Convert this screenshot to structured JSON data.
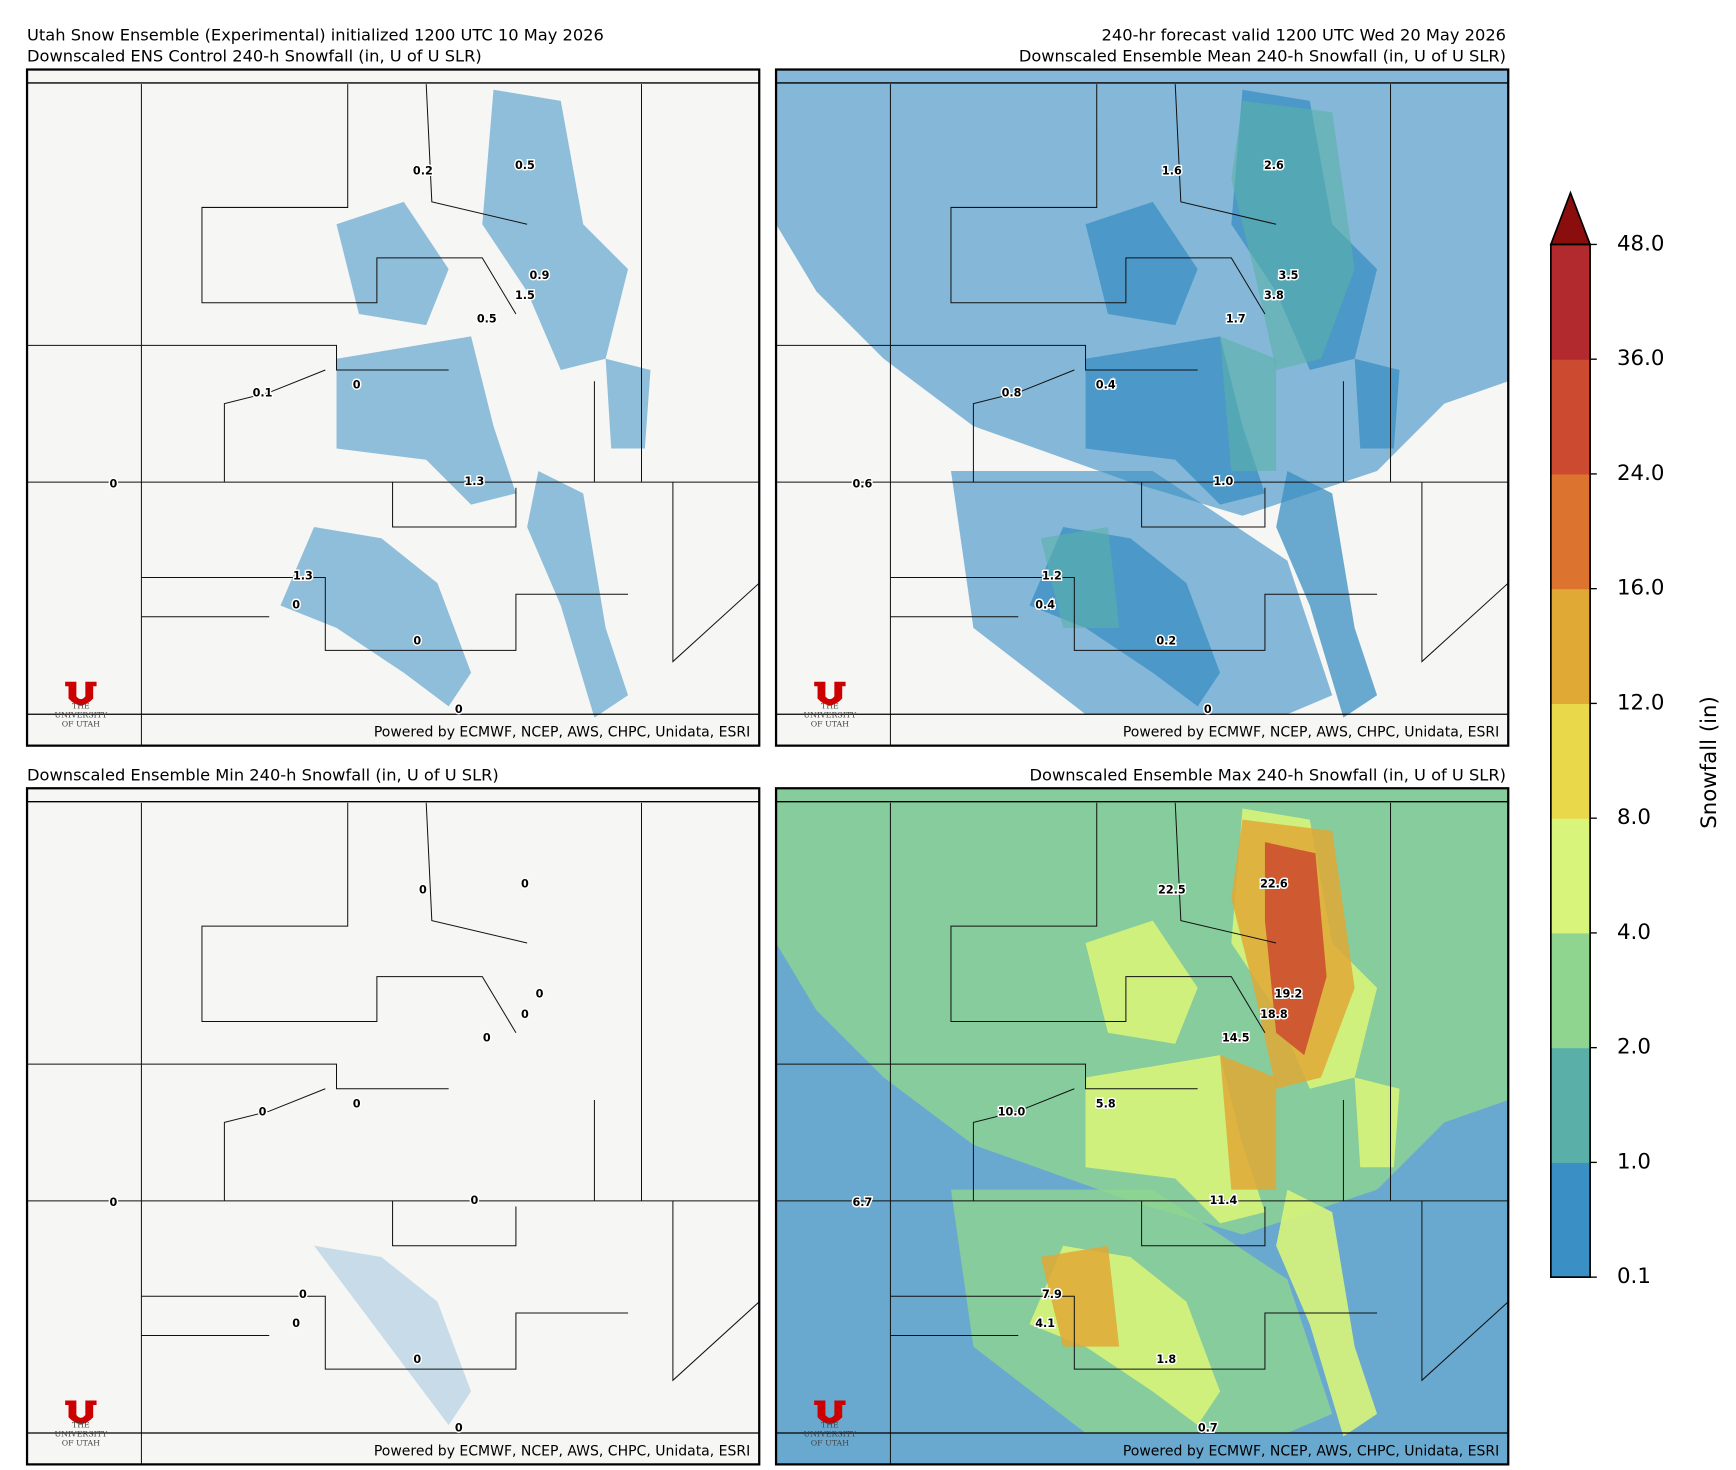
{
  "header": {
    "init": "Utah Snow Ensemble (Experimental) initialized 1200 UTC 10 May 2026",
    "valid": "240-hr forecast valid 1200 UTC Wed 20 May 2026"
  },
  "panels": [
    {
      "title": "Downscaled ENS Control 240-h Snowfall (in, U of U SLR)",
      "labels": [
        "0.2",
        "0.5",
        "0.9",
        "1.5",
        "0.5",
        "0.1",
        "0",
        "0",
        "1.3",
        "1.3",
        "0",
        "0",
        "0"
      ],
      "credit": "Powered by ECMWF, NCEP, AWS, CHPC, Unidata, ESRI",
      "logo": [
        "THE",
        "UNIVERSITY",
        "OF UTAH"
      ]
    },
    {
      "title": "Downscaled Ensemble Mean 240-h Snowfall (in, U of U SLR)",
      "labels": [
        "1.6",
        "2.6",
        "3.5",
        "3.8",
        "1.7",
        "0.8",
        "0.4",
        "0.6",
        "1.0",
        "1.2",
        "0.4",
        "0.2",
        "0"
      ],
      "credit": "Powered by ECMWF, NCEP, AWS, CHPC, Unidata, ESRI",
      "logo": [
        "THE",
        "UNIVERSITY",
        "OF UTAH"
      ]
    },
    {
      "title": "Downscaled Ensemble Min 240-h Snowfall (in, U of U SLR)",
      "labels": [
        "0",
        "0",
        "0",
        "0",
        "0",
        "0",
        "0",
        "0",
        "0",
        "0",
        "0",
        "0",
        "0"
      ],
      "credit": "Powered by ECMWF, NCEP, AWS, CHPC, Unidata, ESRI",
      "logo": [
        "THE",
        "UNIVERSITY",
        "OF UTAH"
      ]
    },
    {
      "title": "Downscaled Ensemble Max 240-h Snowfall (in, U of U SLR)",
      "labels": [
        "22.5",
        "22.6",
        "19.2",
        "18.8",
        "14.5",
        "10.0",
        "5.8",
        "6.7",
        "11.4",
        "7.9",
        "4.1",
        "1.8",
        "0.7"
      ],
      "credit": "Powered by ECMWF, NCEP, AWS, CHPC, Unidata, ESRI",
      "logo": [
        "THE",
        "UNIVERSITY",
        "OF UTAH"
      ]
    }
  ],
  "colorbar": {
    "label": "Snowfall (in)",
    "ticks": [
      0.1,
      {
        "value": 1,
        "label": "1.0"
      },
      {
        "value": 2,
        "label": "2.0"
      },
      {
        "value": 4,
        "label": "4.0"
      },
      {
        "value": 8,
        "label": "8.0"
      },
      {
        "value": 12,
        "label": "12.0"
      },
      {
        "value": 16,
        "label": "16.0"
      },
      {
        "value": 24,
        "label": "24.0"
      },
      {
        "value": 36,
        "label": "36.0"
      },
      {
        "value": 48,
        "label": "48.0"
      }
    ],
    "colors": [
      "#3a8fc4",
      "#5ab0a8",
      "#8fd58f",
      "#d8f47a",
      "#e8d84a",
      "#e0a835",
      "#dc7430",
      "#cc4a30",
      "#b22a2e"
    ],
    "extend_color": "#8b0e0e"
  }
}
